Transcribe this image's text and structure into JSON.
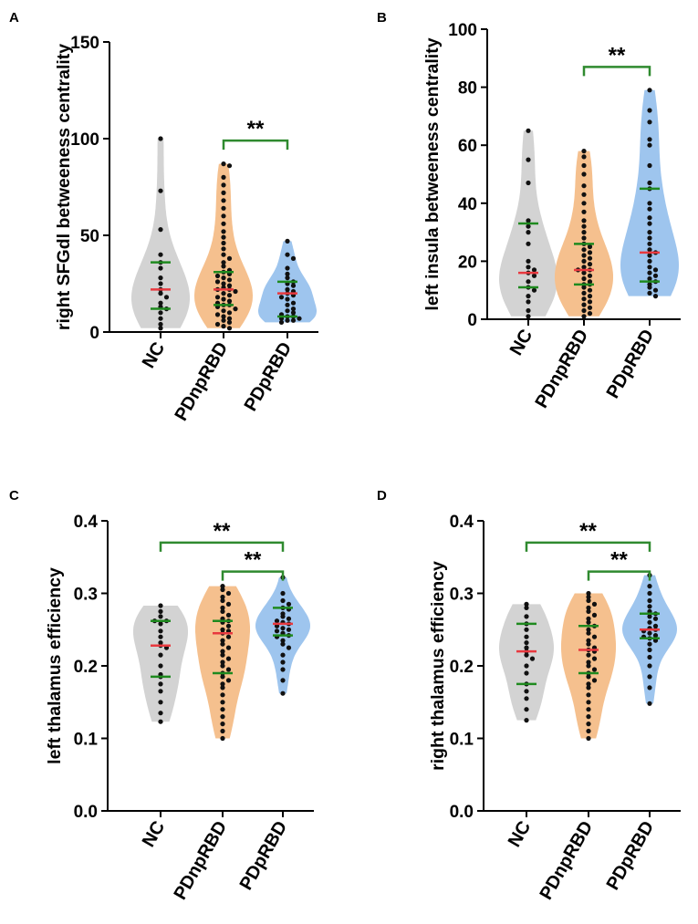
{
  "colors": {
    "NC": "#d3d3d3",
    "PDnpRBD": "#f5c08e",
    "PDpRBD": "#9ec5ee",
    "median": "#e8393f",
    "quartile": "#1f8a1f",
    "bracket": "#2f8a2f",
    "point": "#111111",
    "axis": "#000000"
  },
  "chart_data": [
    {
      "panel": "A",
      "type": "violin",
      "ylabel": "right SFGdl betweeness centrality",
      "ylim": [
        0,
        150
      ],
      "yticks": [
        0,
        50,
        100,
        150
      ],
      "yticklabels": [
        "0",
        "50",
        "100",
        "150"
      ],
      "categories": [
        "NC",
        "PDnpRBD",
        "PDpRBD"
      ],
      "groups": [
        {
          "name": "NC",
          "median": 22,
          "q1": 12,
          "q3": 36,
          "points": [
            100,
            73,
            53,
            40,
            36,
            33,
            28,
            25,
            22,
            20,
            18,
            15,
            13,
            12,
            10,
            7,
            4,
            2
          ]
        },
        {
          "name": "PDnpRBD",
          "median": 22,
          "q1": 14,
          "q3": 31,
          "points": [
            87,
            86,
            80,
            76,
            72,
            68,
            64,
            60,
            56,
            52,
            49,
            46,
            43,
            40,
            38,
            36,
            34,
            32,
            31,
            30,
            29,
            28,
            27,
            26,
            25,
            24,
            23,
            22,
            22,
            21,
            20,
            19,
            18,
            17,
            16,
            15,
            14,
            14,
            13,
            12,
            11,
            10,
            9,
            8,
            7,
            6,
            5,
            4,
            3,
            2
          ]
        },
        {
          "name": "PDpRBD",
          "median": 20,
          "q1": 8,
          "q3": 26,
          "points": [
            47,
            40,
            38,
            33,
            30,
            28,
            26,
            25,
            24,
            22,
            21,
            20,
            19,
            18,
            17,
            15,
            14,
            12,
            11,
            10,
            9,
            8,
            8,
            7,
            7,
            6,
            6,
            5
          ]
        }
      ],
      "significance": [
        {
          "from": "PDnpRBD",
          "to": "PDpRBD",
          "label": "**",
          "y": 99
        }
      ]
    },
    {
      "panel": "B",
      "type": "violin",
      "ylabel": "left insula betweeness centrality",
      "ylim": [
        0,
        100
      ],
      "yticks": [
        0,
        20,
        40,
        60,
        80,
        100
      ],
      "yticklabels": [
        "0",
        "20",
        "40",
        "60",
        "80",
        "100"
      ],
      "categories": [
        "NC",
        "PDnpRBD",
        "PDpRBD"
      ],
      "groups": [
        {
          "name": "NC",
          "median": 16,
          "q1": 11,
          "q3": 33,
          "points": [
            65,
            55,
            47,
            34,
            32,
            30,
            26,
            20,
            18,
            17,
            16,
            15,
            13,
            11,
            10,
            8,
            6,
            3,
            1
          ]
        },
        {
          "name": "PDnpRBD",
          "median": 17,
          "q1": 12,
          "q3": 26,
          "points": [
            58,
            56,
            53,
            50,
            46,
            43,
            40,
            37,
            34,
            32,
            30,
            28,
            26,
            25,
            24,
            23,
            22,
            21,
            20,
            19,
            18,
            17,
            17,
            16,
            15,
            14,
            13,
            12,
            12,
            11,
            10,
            9,
            8,
            7,
            6,
            5,
            4,
            3,
            2,
            1
          ]
        },
        {
          "name": "PDpRBD",
          "median": 23,
          "q1": 13,
          "q3": 45,
          "points": [
            79,
            72,
            68,
            62,
            60,
            53,
            47,
            45,
            40,
            38,
            35,
            33,
            30,
            28,
            26,
            24,
            23,
            22,
            20,
            18,
            17,
            16,
            15,
            14,
            13,
            12,
            11,
            10,
            9,
            8
          ]
        }
      ],
      "significance": [
        {
          "from": "PDnpRBD",
          "to": "PDpRBD",
          "label": "**",
          "y": 87
        }
      ]
    },
    {
      "panel": "C",
      "type": "violin",
      "ylabel": "left thalamus efficiency",
      "ylim": [
        0,
        0.4
      ],
      "yticks": [
        0,
        0.1,
        0.2,
        0.3,
        0.4
      ],
      "yticklabels": [
        "0.0",
        "0.1",
        "0.2",
        "0.3",
        "0.4"
      ],
      "categories": [
        "NC",
        "PDnpRBD",
        "PDpRBD"
      ],
      "groups": [
        {
          "name": "NC",
          "median": 0.228,
          "q1": 0.185,
          "q3": 0.262,
          "points": [
            0.283,
            0.275,
            0.268,
            0.262,
            0.262,
            0.258,
            0.248,
            0.24,
            0.232,
            0.228,
            0.225,
            0.215,
            0.2,
            0.188,
            0.185,
            0.175,
            0.165,
            0.15,
            0.135,
            0.123
          ]
        },
        {
          "name": "PDnpRBD",
          "median": 0.245,
          "q1": 0.19,
          "q3": 0.262,
          "points": [
            0.31,
            0.305,
            0.3,
            0.295,
            0.29,
            0.285,
            0.28,
            0.275,
            0.27,
            0.265,
            0.262,
            0.26,
            0.255,
            0.25,
            0.248,
            0.245,
            0.24,
            0.235,
            0.23,
            0.225,
            0.22,
            0.215,
            0.21,
            0.205,
            0.2,
            0.195,
            0.19,
            0.185,
            0.18,
            0.175,
            0.17,
            0.16,
            0.15,
            0.14,
            0.13,
            0.12,
            0.11,
            0.1
          ]
        },
        {
          "name": "PDpRBD",
          "median": 0.258,
          "q1": 0.242,
          "q3": 0.28,
          "points": [
            0.322,
            0.3,
            0.29,
            0.285,
            0.28,
            0.278,
            0.272,
            0.268,
            0.265,
            0.262,
            0.26,
            0.258,
            0.255,
            0.252,
            0.25,
            0.248,
            0.245,
            0.242,
            0.24,
            0.235,
            0.23,
            0.225,
            0.215,
            0.205,
            0.195,
            0.18,
            0.162
          ]
        }
      ],
      "significance": [
        {
          "from": "NC",
          "to": "PDpRBD",
          "label": "**",
          "y": 0.37
        },
        {
          "from": "PDnpRBD",
          "to": "PDpRBD",
          "label": "**",
          "y": 0.33
        }
      ]
    },
    {
      "panel": "D",
      "type": "violin",
      "ylabel": "right thalamus efficiency",
      "ylim": [
        0,
        0.4
      ],
      "yticks": [
        0,
        0.1,
        0.2,
        0.3,
        0.4
      ],
      "yticklabels": [
        "0.0",
        "0.1",
        "0.2",
        "0.3",
        "0.4"
      ],
      "categories": [
        "NC",
        "PDnpRBD",
        "PDpRBD"
      ],
      "groups": [
        {
          "name": "NC",
          "median": 0.22,
          "q1": 0.175,
          "q3": 0.258,
          "points": [
            0.285,
            0.28,
            0.268,
            0.258,
            0.25,
            0.24,
            0.232,
            0.225,
            0.22,
            0.215,
            0.21,
            0.2,
            0.19,
            0.175,
            0.165,
            0.155,
            0.14,
            0.125
          ]
        },
        {
          "name": "PDnpRBD",
          "median": 0.222,
          "q1": 0.19,
          "q3": 0.255,
          "points": [
            0.3,
            0.295,
            0.29,
            0.285,
            0.28,
            0.275,
            0.27,
            0.265,
            0.26,
            0.255,
            0.25,
            0.245,
            0.24,
            0.235,
            0.23,
            0.225,
            0.222,
            0.22,
            0.215,
            0.21,
            0.205,
            0.2,
            0.195,
            0.19,
            0.185,
            0.18,
            0.175,
            0.17,
            0.16,
            0.15,
            0.14,
            0.13,
            0.12,
            0.11,
            0.1
          ]
        },
        {
          "name": "PDpRBD",
          "median": 0.25,
          "q1": 0.238,
          "q3": 0.272,
          "points": [
            0.325,
            0.31,
            0.3,
            0.29,
            0.282,
            0.275,
            0.272,
            0.268,
            0.265,
            0.26,
            0.255,
            0.252,
            0.25,
            0.248,
            0.245,
            0.242,
            0.24,
            0.238,
            0.235,
            0.23,
            0.222,
            0.212,
            0.2,
            0.185,
            0.17,
            0.148
          ]
        }
      ],
      "significance": [
        {
          "from": "NC",
          "to": "PDpRBD",
          "label": "**",
          "y": 0.37
        },
        {
          "from": "PDnpRBD",
          "to": "PDpRBD",
          "label": "**",
          "y": 0.33
        }
      ]
    }
  ]
}
